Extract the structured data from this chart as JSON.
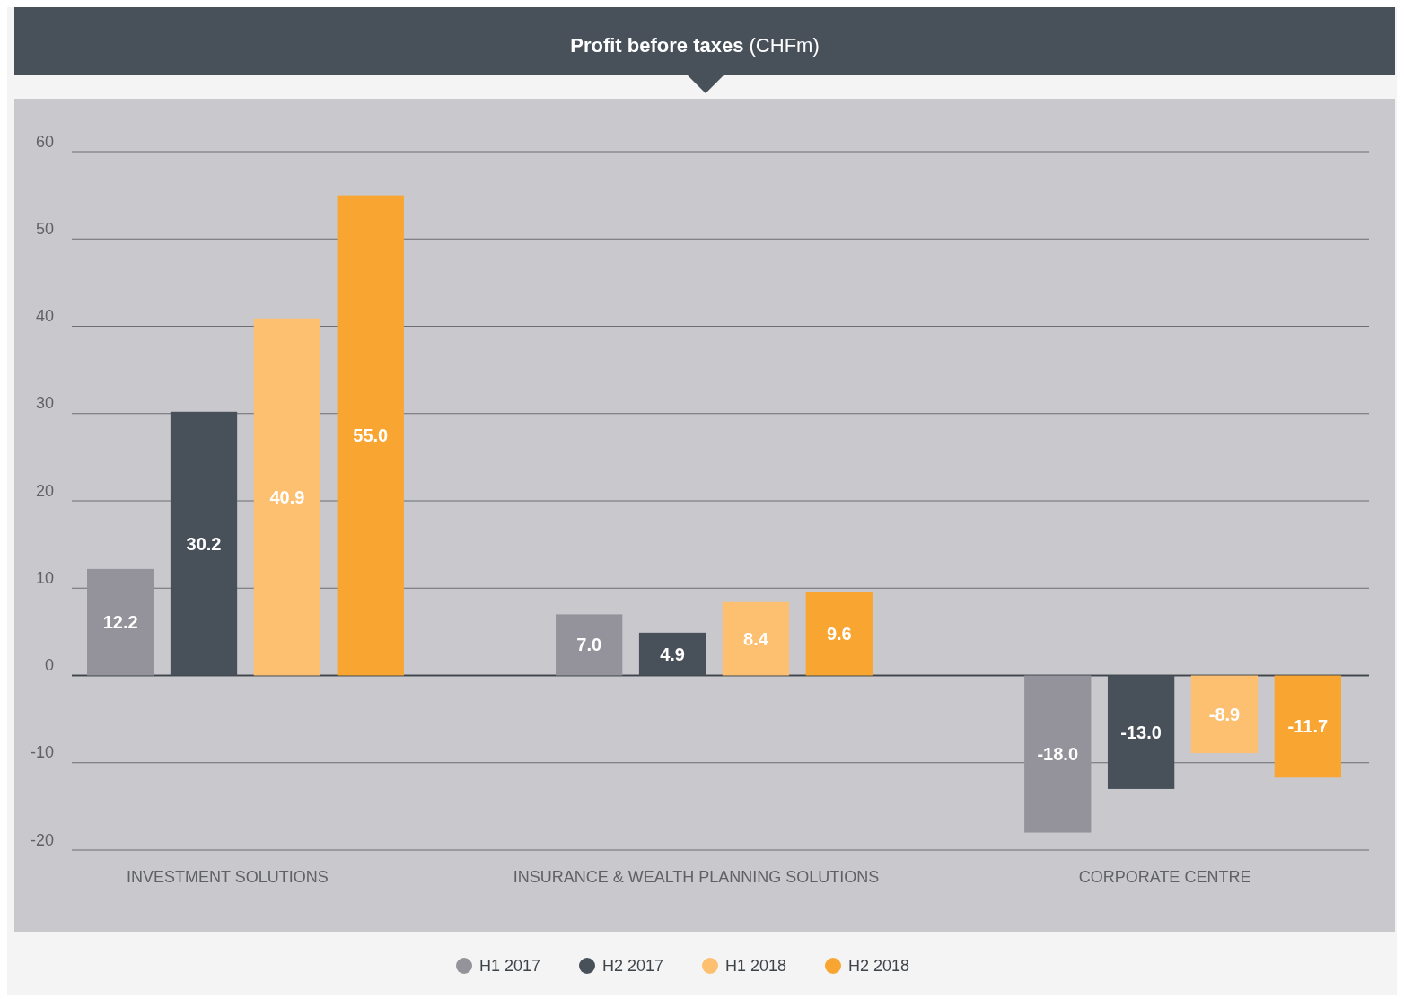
{
  "chart_data": {
    "type": "bar",
    "title": "Profit before taxes",
    "subtitle": "(CHFm)",
    "categories": [
      "INVESTMENT SOLUTIONS",
      "INSURANCE & WEALTH PLANNING SOLUTIONS",
      "CORPORATE CENTRE"
    ],
    "series": [
      {
        "name": "H1 2017",
        "color": "#94939b",
        "values": [
          12.2,
          7.0,
          -18.0
        ],
        "value_labels": [
          "12.2",
          "7.0",
          "-18.0"
        ]
      },
      {
        "name": "H2 2017",
        "color": "#48505a",
        "values": [
          30.2,
          4.9,
          -13.0
        ],
        "value_labels": [
          "30.2",
          "4.9",
          "-13.0"
        ]
      },
      {
        "name": "H1 2018",
        "color": "#fdbf70",
        "values": [
          40.9,
          8.4,
          -8.9
        ],
        "value_labels": [
          "40.9",
          "8.4",
          "-8.9"
        ]
      },
      {
        "name": "H2 2018",
        "color": "#f8a532",
        "values": [
          55.0,
          9.6,
          -11.7
        ],
        "value_labels": [
          "55.0",
          "9.6",
          "-11.7"
        ]
      }
    ],
    "ylim": [
      -20,
      60
    ],
    "yticks": [
      -20,
      -10,
      0,
      10,
      20,
      30,
      40,
      50,
      60
    ],
    "grid": "y",
    "legend": "bottom"
  }
}
